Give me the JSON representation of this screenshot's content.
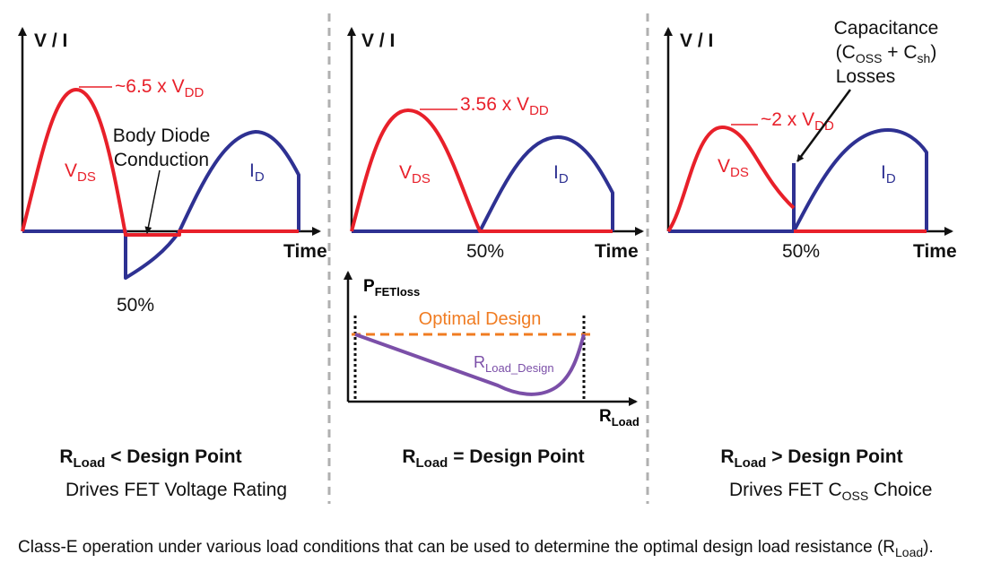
{
  "colors": {
    "vds": "#e8202a",
    "id": "#2e3192",
    "optimal": "#f07c22",
    "rload_curve": "#7b4fa8",
    "separator": "#b0b0b0"
  },
  "panels": [
    {
      "y_axis": "V / I",
      "x_axis": "Time",
      "peak_label": "~6.5 x V",
      "peak_sub": "DD",
      "vds": "V",
      "vds_sub": "DS",
      "id": "I",
      "id_sub": "D",
      "pct": "50%",
      "note_1": "Body Diode",
      "note_2": "Conduction",
      "title_r": "R",
      "title_sub": "Load",
      "title_rest": " < Design Point",
      "subtitle": "Drives FET Voltage Rating"
    },
    {
      "y_axis": "V / I",
      "x_axis": "Time",
      "peak_label": "3.56 x V",
      "peak_sub": "DD",
      "vds": "V",
      "vds_sub": "DS",
      "id": "I",
      "id_sub": "D",
      "pct": "50%",
      "title_r": "R",
      "title_sub": "Load",
      "title_rest": " = Design Point"
    },
    {
      "y_axis": "V / I",
      "x_axis": "Time",
      "peak_label": "~2 x V",
      "peak_sub": "DD",
      "vds": "V",
      "vds_sub": "DS",
      "id": "I",
      "id_sub": "D",
      "pct": "50%",
      "note_1": "Capacitance",
      "note_2a": "(C",
      "note_2b": "OSS",
      "note_2c": " + C",
      "note_2d": "sh",
      "note_2e": ")",
      "note_3": "Losses",
      "title_r": "R",
      "title_sub": "Load",
      "title_rest": " > Design Point",
      "subtitle_a": "Drives FET C",
      "subtitle_b": "OSS",
      "subtitle_c": " Choice"
    }
  ],
  "loss_chart": {
    "y_axis": "P",
    "y_sub": "FETloss",
    "x_axis": "R",
    "x_sub": "Load",
    "optimal": "Optimal Design",
    "curve": "R",
    "curve_sub": "Load_Design"
  },
  "caption": {
    "text": "Class-E operation under various load conditions that can be used to determine the optimal design load resistance (R",
    "sub": "Load",
    "end": ")."
  }
}
